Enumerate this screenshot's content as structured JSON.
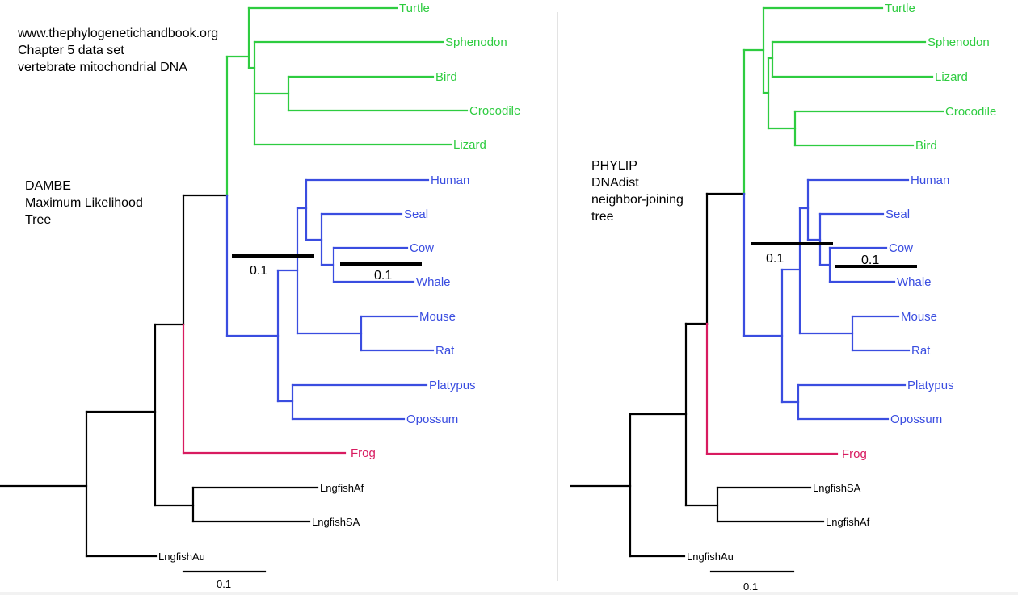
{
  "left_notes": [
    "www.thephylogenetichandbook.org",
    "Chapter 5 data set",
    "vertebrate mitochondrial DNA"
  ],
  "left_title": [
    "DAMBE",
    "Maximum Likelihood",
    "Tree"
  ],
  "right_title": [
    "PHYLIP",
    "DNAdist",
    "neighbor-joining",
    "tree"
  ],
  "colors": {
    "reptile": "#2ecc40",
    "mammal": "#3a4de0",
    "frog": "#d81b60",
    "lungfish": "#000000"
  },
  "left_tree": {
    "taxa": [
      "Turtle",
      "Sphenodon",
      "Bird",
      "Crocodile",
      "Lizard",
      "Human",
      "Seal",
      "Cow",
      "Whale",
      "Mouse",
      "Rat",
      "Platypus",
      "Opossum",
      "Frog",
      "LngfishAf",
      "LngfishSA",
      "LngfishAu"
    ],
    "scale_labels": {
      "inner_mammal": "0.1",
      "inner_whale": "0.1",
      "bottom": "0.1"
    }
  },
  "right_tree": {
    "taxa": [
      "Turtle",
      "Sphenodon",
      "Lizard",
      "Crocodile",
      "Bird",
      "Human",
      "Seal",
      "Cow",
      "Whale",
      "Mouse",
      "Rat",
      "Platypus",
      "Opossum",
      "Frog",
      "LngfishSA",
      "LngfishAf",
      "LngfishAu"
    ],
    "scale_labels": {
      "inner_mammal": "0.1",
      "inner_whale": "0.1",
      "bottom": "0.1"
    }
  }
}
